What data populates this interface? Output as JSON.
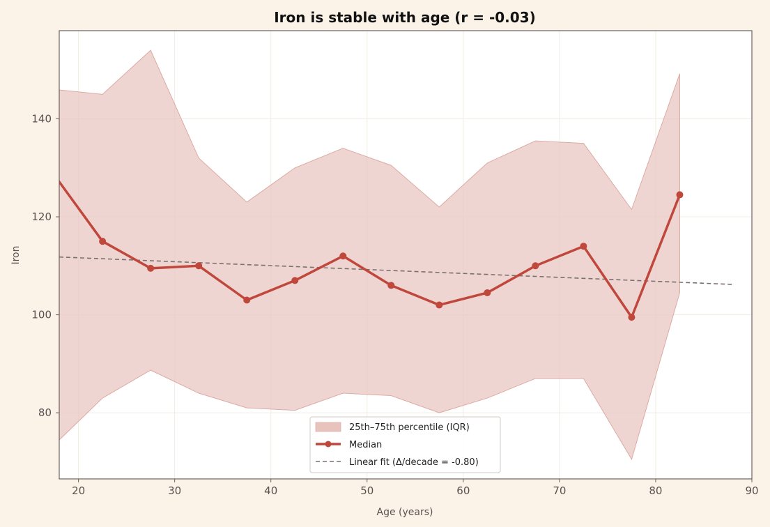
{
  "chart_data": {
    "type": "line",
    "title": "Iron is stable with age (r = -0.03)",
    "xlabel": "Age (years)",
    "ylabel": "Iron",
    "xlim": [
      18,
      90
    ],
    "ylim": [
      66.5,
      158
    ],
    "xticks": [
      20,
      30,
      40,
      50,
      60,
      70,
      80,
      90
    ],
    "yticks": [
      80,
      100,
      120,
      140
    ],
    "grid": true,
    "legend_position": "bottom-center",
    "colors": {
      "median": "#c0473c",
      "iqr_fill": "#e8c3bd",
      "fit": "#7b7070",
      "background": "#fbf3e8",
      "plot_background": "#ffffff"
    },
    "series": [
      {
        "name": "25th–75th percentile (IQR)",
        "kind": "band",
        "x": [
          17.5,
          22.5,
          27.5,
          32.5,
          37.5,
          42.5,
          47.5,
          52.5,
          57.5,
          62.5,
          67.5,
          72.5,
          77.5,
          82.5
        ],
        "lower": [
          73.5,
          83,
          88.7,
          84,
          81,
          80.5,
          84,
          83.5,
          80,
          83,
          87,
          87,
          70.5,
          104.5
        ],
        "upper": [
          146,
          145,
          154,
          132,
          123,
          130,
          134,
          130.5,
          122,
          131,
          135.5,
          135,
          121.5,
          149.2
        ]
      },
      {
        "name": "Median",
        "kind": "line",
        "x": [
          17.5,
          22.5,
          27.5,
          32.5,
          37.5,
          42.5,
          47.5,
          52.5,
          57.5,
          62.5,
          67.5,
          72.5,
          77.5,
          82.5
        ],
        "values": [
          128.5,
          115,
          109.5,
          110,
          103,
          107,
          112,
          106,
          102,
          104.5,
          110,
          114,
          99.5,
          124.5
        ]
      },
      {
        "name": "Linear fit (Δ/decade = -0.80)",
        "kind": "fit",
        "x": [
          18,
          88
        ],
        "values": [
          111.8,
          106.2
        ]
      }
    ]
  }
}
